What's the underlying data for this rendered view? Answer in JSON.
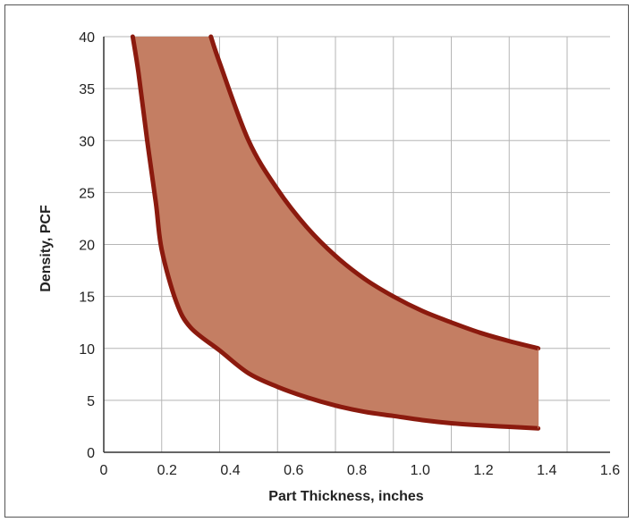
{
  "chart_data": {
    "type": "area",
    "title": "",
    "xlabel": "Part Thickness, inches",
    "ylabel": "Density, PCF",
    "xlim": [
      0,
      1.6
    ],
    "ylim": [
      0,
      40
    ],
    "x_ticks": [
      "0",
      "0.2",
      "0.4",
      "0.6",
      "0.8",
      "1.0",
      "1.2",
      "1.4",
      "1.6"
    ],
    "y_ticks": [
      "0",
      "5",
      "10",
      "15",
      "20",
      "25",
      "30",
      "35",
      "40"
    ],
    "grid": true,
    "legend": "none",
    "series": [
      {
        "role": "upper-boundary",
        "x": [
          0.37,
          0.4,
          0.5,
          0.6,
          0.7,
          0.8,
          0.9,
          1.0,
          1.1,
          1.2,
          1.3,
          1.4,
          1.5
        ],
        "y": [
          40,
          37.5,
          30,
          25.3,
          21.7,
          18.9,
          16.7,
          15.0,
          13.6,
          12.5,
          11.5,
          10.7,
          10.0
        ]
      },
      {
        "role": "lower-boundary",
        "x": [
          0.1,
          0.12,
          0.15,
          0.18,
          0.2,
          0.25,
          0.3,
          0.4,
          0.5,
          0.6,
          0.7,
          0.8,
          0.9,
          1.0,
          1.1,
          1.2,
          1.3,
          1.4,
          1.5
        ],
        "y": [
          40,
          36.5,
          30,
          24,
          19.5,
          14.5,
          12.0,
          9.8,
          7.6,
          6.3,
          5.3,
          4.5,
          3.9,
          3.5,
          3.1,
          2.8,
          2.6,
          2.45,
          2.3
        ]
      }
    ],
    "colors": {
      "fill": "#c47e63",
      "line": "#8b1a0e",
      "grid": "#b5b5b5",
      "axis": "#333333"
    }
  }
}
